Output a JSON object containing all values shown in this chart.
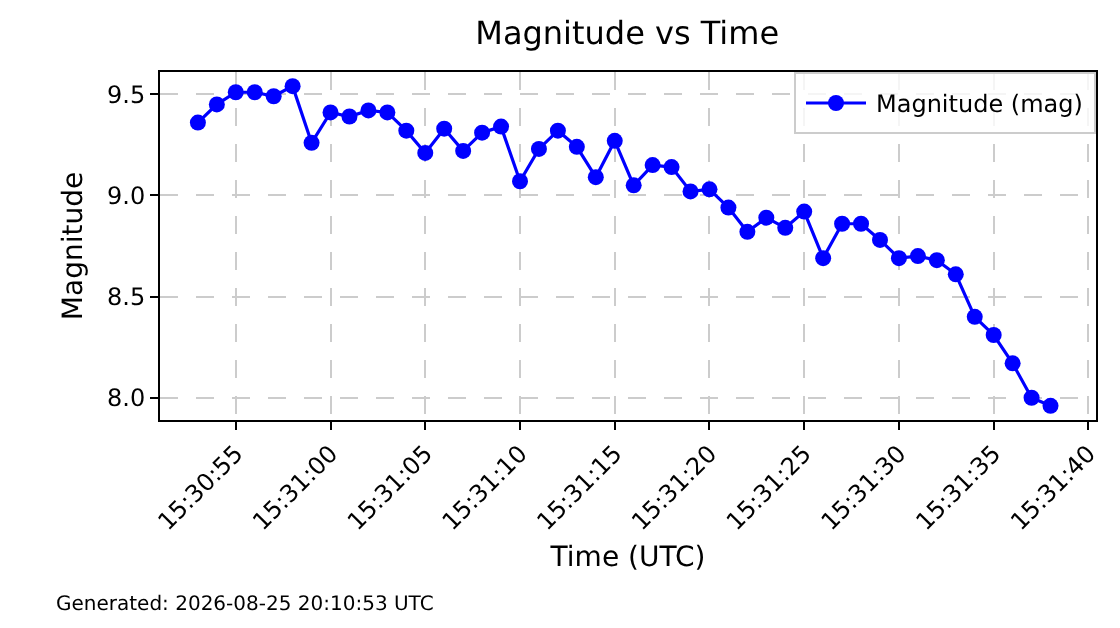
{
  "chart_data": {
    "type": "line",
    "title": "Magnitude vs Time",
    "xlabel": "Time (UTC)",
    "ylabel": "Magnitude",
    "annotations": [
      "Generated: 2026-08-25 20:10:53 UTC"
    ],
    "x": [
      15.5147222,
      15.515,
      15.5152778,
      15.5155556,
      15.5158333,
      15.5161111,
      15.5163889,
      15.5166667,
      15.5169444,
      15.5172222,
      15.5175,
      15.5177778,
      15.5180556,
      15.5183333,
      15.5186111,
      15.5188889,
      15.5191667,
      15.5194444,
      15.5197222,
      15.52,
      15.5202778,
      15.5205556,
      15.5208333,
      15.5211111,
      15.5213889,
      15.5216667,
      15.5219444,
      15.5222222,
      15.5225,
      15.5227778,
      15.5230556,
      15.5233333,
      15.5236111,
      15.5238889,
      15.5241667,
      15.5244444,
      15.5247222,
      15.525,
      15.5252778,
      15.5255556,
      15.5258333,
      15.5261111,
      15.5263889,
      15.5266667,
      15.5269444,
      15.5272222
    ],
    "series": [
      {
        "name": "Magnitude (mag)",
        "color": "#0000ff",
        "values": [
          9.36,
          9.45,
          9.51,
          9.51,
          9.49,
          9.54,
          9.26,
          9.41,
          9.39,
          9.42,
          9.41,
          9.32,
          9.21,
          9.33,
          9.22,
          9.31,
          9.34,
          9.07,
          9.23,
          9.32,
          9.24,
          9.09,
          9.27,
          9.05,
          9.15,
          9.14,
          9.02,
          9.03,
          8.94,
          8.82,
          8.89,
          8.84,
          8.92,
          8.69,
          8.86,
          8.86,
          8.78,
          8.69,
          8.7,
          8.68,
          8.61,
          8.4,
          8.31,
          8.17,
          8.0,
          7.96
        ]
      }
    ],
    "xlim": [
      15.5141667,
      15.5278889
    ],
    "xticks": [
      {
        "value": 15.5152778,
        "label": "15:30:55"
      },
      {
        "value": 15.5166667,
        "label": "15:31:00"
      },
      {
        "value": 15.5180556,
        "label": "15:31:05"
      },
      {
        "value": 15.5194444,
        "label": "15:31:10"
      },
      {
        "value": 15.5208333,
        "label": "15:31:15"
      },
      {
        "value": 15.5222222,
        "label": "15:31:20"
      },
      {
        "value": 15.5236111,
        "label": "15:31:25"
      },
      {
        "value": 15.525,
        "label": "15:31:30"
      },
      {
        "value": 15.5263889,
        "label": "15:31:35"
      },
      {
        "value": 15.5277778,
        "label": "15:31:40"
      }
    ],
    "ylim": [
      7.89,
      9.61
    ],
    "yticks": [
      {
        "value": 8,
        "label": "8.0"
      },
      {
        "value": 8.5,
        "label": "8.5"
      },
      {
        "value": 9,
        "label": "9.0"
      },
      {
        "value": 9.5,
        "label": "9.5"
      }
    ],
    "grid": true,
    "legend": "top right",
    "marker": "circle",
    "line_style": "solid"
  }
}
